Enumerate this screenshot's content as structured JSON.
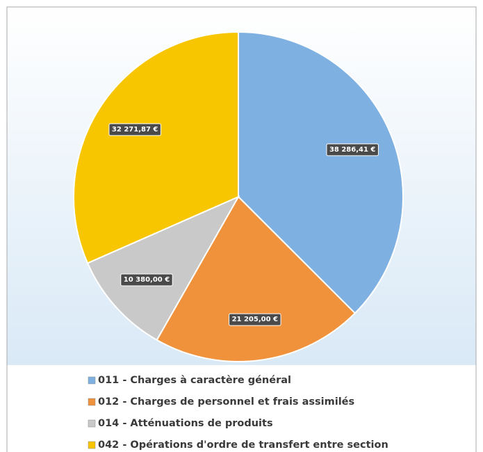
{
  "chart_data": {
    "type": "pie",
    "categories": [
      "011 - Charges à caractère général",
      "012 - Charges de personnel et frais assimilés",
      "014 - Atténuations de produits",
      "042 - Opérations d'ordre de transfert entre section"
    ],
    "values": [
      38286.41,
      21205.0,
      10380.0,
      32271.87
    ],
    "value_labels": [
      "38 286,41 €",
      "21 205,00 €",
      "10 380,00 €",
      "32 271,87 €"
    ],
    "colors": [
      "#7eb1e1",
      "#f0913b",
      "#c9c9c9",
      "#f7c600"
    ],
    "legend": "bottom"
  }
}
